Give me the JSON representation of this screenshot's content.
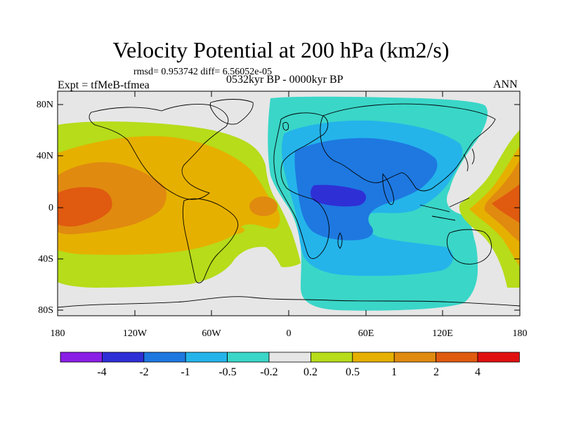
{
  "header": {
    "title": "Velocity Potential at 200 hPa (km2/s)",
    "stats": "rmsd= 0.953742 diff= 6.56052e-05",
    "expt": "Expt = tfMeB-tfmea",
    "period": "0532kyr BP - 0000kyr BP",
    "season": "ANN"
  },
  "map": {
    "lat_ticks": [
      "80N",
      "40N",
      "0",
      "40S",
      "80S"
    ],
    "lon_ticks": [
      "180",
      "120W",
      "60W",
      "0",
      "60E",
      "120E",
      "180"
    ],
    "background_color": "#e6e6e6"
  },
  "colorbar": {
    "labels": [
      "-4",
      "-2",
      "-1",
      "-0.5",
      "-0.2",
      "0.2",
      "0.5",
      "1",
      "2",
      "4"
    ],
    "colors": [
      "#8a1fe6",
      "#2f2fd6",
      "#1e78e0",
      "#24b4ea",
      "#3ad6c8",
      "#e6e6e6",
      "#b6dc1a",
      "#e6b000",
      "#e08a10",
      "#e05a10",
      "#e01010"
    ]
  }
}
